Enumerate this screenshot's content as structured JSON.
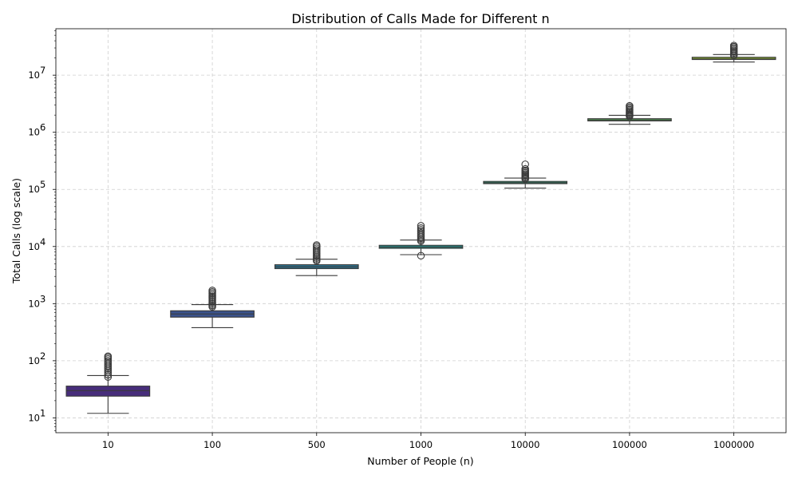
{
  "chart_data": {
    "type": "box",
    "title": "Distribution of Calls Made for Different n",
    "xlabel": "Number of People (n)",
    "ylabel": "Total Calls (log scale)",
    "yscale": "log",
    "ylim": [
      5.5,
      65000000
    ],
    "grid": true,
    "categories": [
      "10",
      "100",
      "500",
      "1000",
      "10000",
      "100000",
      "1000000"
    ],
    "yticks": [
      {
        "value": 10,
        "label": "10",
        "exp": "1"
      },
      {
        "value": 100,
        "label": "10",
        "exp": "2"
      },
      {
        "value": 1000,
        "label": "10",
        "exp": "3"
      },
      {
        "value": 10000,
        "label": "10",
        "exp": "4"
      },
      {
        "value": 100000,
        "label": "10",
        "exp": "5"
      },
      {
        "value": 1000000,
        "label": "10",
        "exp": "6"
      },
      {
        "value": 10000000,
        "label": "10",
        "exp": "7"
      }
    ],
    "boxes": [
      {
        "category": "10",
        "whisker_low": 12,
        "q1": 24,
        "median": 30,
        "q3": 36,
        "whisker_high": 55,
        "outliers": [
          52,
          57,
          62,
          67,
          72,
          77,
          82,
          88,
          94,
          100,
          107,
          114,
          120
        ],
        "color": "#472d7b"
      },
      {
        "category": "100",
        "whisker_low": 380,
        "q1": 580,
        "median": 660,
        "q3": 750,
        "whisker_high": 960,
        "outliers": [
          880,
          930,
          990,
          1050,
          1120,
          1190,
          1260,
          1340,
          1420,
          1510,
          1600,
          1700
        ],
        "color": "#3b528b"
      },
      {
        "category": "500",
        "whisker_low": 3100,
        "q1": 4100,
        "median": 4400,
        "q3": 4800,
        "whisker_high": 6000,
        "outliers": [
          5600,
          5900,
          6300,
          6700,
          7100,
          7600,
          8100,
          8700,
          9300,
          10000,
          10600
        ],
        "color": "#2c728e"
      },
      {
        "category": "1000",
        "whisker_low": 7200,
        "q1": 9300,
        "median": 9800,
        "q3": 10500,
        "whisker_high": 13000,
        "outliers": [
          6900,
          12500,
          13200,
          14000,
          14900,
          15900,
          17000,
          18200,
          19500,
          21000,
          23000
        ],
        "color": "#21918c"
      },
      {
        "category": "10000",
        "whisker_low": 105000,
        "q1": 126000,
        "median": 131000,
        "q3": 138000,
        "whisker_high": 158000,
        "outliers": [
          152000,
          160000,
          168000,
          176000,
          185000,
          195000,
          205000,
          215000,
          228000,
          275000
        ],
        "color": "#28ae80"
      },
      {
        "category": "100000",
        "whisker_low": 1380000,
        "q1": 1580000,
        "median": 1650000,
        "q3": 1730000,
        "whisker_high": 1980000,
        "outliers": [
          1900000,
          1980000,
          2060000,
          2150000,
          2250000,
          2360000,
          2480000,
          2600000,
          2750000,
          2900000
        ],
        "color": "#5ec962"
      },
      {
        "category": "1000000",
        "whisker_low": 17000000,
        "q1": 18800000,
        "median": 19600000,
        "q3": 20600000,
        "whisker_high": 23000000,
        "outliers": [
          22000000,
          23300000,
          24500000,
          25800000,
          27000000,
          28500000,
          30000000,
          31500000,
          33000000
        ],
        "color": "#addc30"
      }
    ]
  }
}
